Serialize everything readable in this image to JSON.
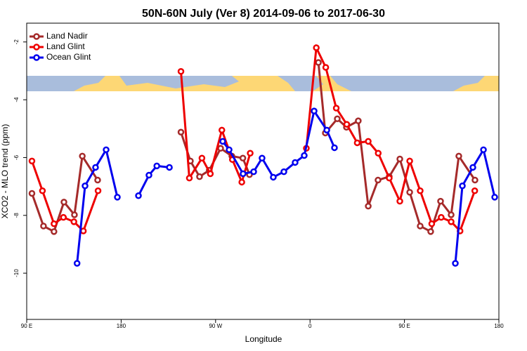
{
  "chart_data": {
    "type": "line",
    "title": "50N-60N July (Ver 8)   2014-09-06 to 2017-06-30",
    "x_label": "Longitude",
    "y_label": "XCO2 - MLO trend (ppm)",
    "xlim": [
      90,
      540
    ],
    "ylim": [
      -11.6,
      -1.35
    ],
    "xticks": [
      {
        "value": 90,
        "label": "90 E"
      },
      180,
      {
        "value": 270,
        "label": "90 W"
      },
      0,
      {
        "value": 450,
        "label": "90 E"
      },
      {
        "value": 540,
        "label": "180"
      }
    ],
    "yticks": [
      -2,
      -4,
      -6,
      -8,
      -10
    ],
    "legend": "top-left",
    "grid": false,
    "series": [
      {
        "name": "Land Nadir",
        "color": "#a52a2a",
        "x": [
          95,
          106,
          116,
          125.5,
          135.5,
          143,
          157.6,
          null,
          237,
          246,
          254.7,
          264,
          274.8,
          285.5,
          296,
          302.3,
          null,
          368,
          374.6,
          386,
          394.7,
          406,
          415.5,
          424.8,
          435.5,
          445.6,
          455,
          465,
          475,
          484.4,
          494.5,
          501.8,
          517.2
        ],
        "values": [
          -7.24,
          -8.37,
          -8.56,
          -7.54,
          -7.98,
          -5.95,
          -6.78,
          null,
          -5.12,
          -6.12,
          -6.66,
          -6.44,
          -5.68,
          -5.95,
          -6.02,
          -6.59,
          null,
          -2.71,
          -5.15,
          -4.66,
          -4.95,
          -4.73,
          -7.68,
          -6.78,
          -6.66,
          -6.05,
          -7.2,
          -8.37,
          -8.56,
          -7.51,
          -7.98,
          -5.95,
          -6.78
        ]
      },
      {
        "name": "Land Glint",
        "color": "#ee0000",
        "x": [
          95,
          105,
          116,
          125,
          135,
          144,
          158,
          null,
          237,
          245,
          257,
          265,
          276,
          286,
          295,
          303,
          null,
          356.5,
          366,
          375,
          385,
          395,
          405,
          415.5,
          425,
          435.5,
          445.6,
          455,
          465,
          476,
          485,
          494.5,
          503,
          517
        ],
        "values": [
          -6.12,
          -7.15,
          -8.29,
          -8.07,
          -8.22,
          -8.54,
          -7.15,
          null,
          -3.02,
          -6.71,
          -6.02,
          -6.56,
          -5.05,
          -6.07,
          -6.85,
          -5.85,
          null,
          -5.68,
          -2.2,
          -2.88,
          -4.29,
          -4.85,
          -5.49,
          -5.44,
          -5.85,
          -6.71,
          -7.51,
          -6.12,
          -7.15,
          -8.29,
          -8.07,
          -8.22,
          -8.54,
          -7.15
        ]
      },
      {
        "name": "Ocean Glint",
        "color": "#0000ee",
        "x": [
          138,
          145.6,
          155.6,
          165.7,
          176.4,
          null,
          196.5,
          206.5,
          214,
          226,
          null,
          276.8,
          282.9,
          296.2,
          306.3,
          314.3,
          325,
          335.1,
          345.8,
          354.5,
          363.9,
          376,
          383.3,
          null,
          498.5,
          505.2,
          515.2,
          525.3,
          536
        ],
        "values": [
          -9.66,
          -6.98,
          -6.34,
          -5.73,
          -7.37,
          null,
          -7.32,
          -6.61,
          -6.29,
          -6.34,
          null,
          -5.44,
          -5.73,
          -6.56,
          -6.49,
          -6.02,
          -6.68,
          -6.49,
          -6.17,
          -5.93,
          -4.39,
          -5.05,
          -5.66,
          null,
          -9.66,
          -6.98,
          -6.34,
          -5.73,
          -7.37
        ]
      }
    ]
  }
}
